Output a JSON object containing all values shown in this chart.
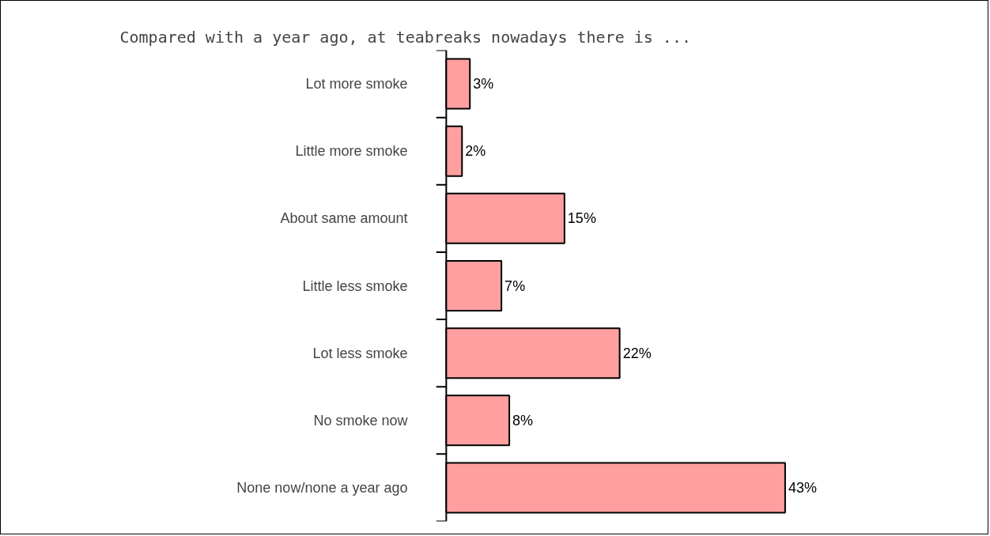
{
  "chart_data": {
    "type": "bar",
    "orientation": "horizontal",
    "title": "Compared with a year ago, at teabreaks nowadays there is ...",
    "categories": [
      "Lot more smoke",
      "Little more smoke",
      "About same amount",
      "Little less smoke",
      "Lot less smoke",
      "No smoke now",
      "None now/none a year ago"
    ],
    "values": [
      3,
      2,
      15,
      7,
      22,
      8,
      43
    ],
    "value_labels": [
      "3%",
      "2%",
      "15%",
      "7%",
      "22%",
      "8%",
      "43%"
    ],
    "color": "#ff9f9f",
    "grid": false
  }
}
